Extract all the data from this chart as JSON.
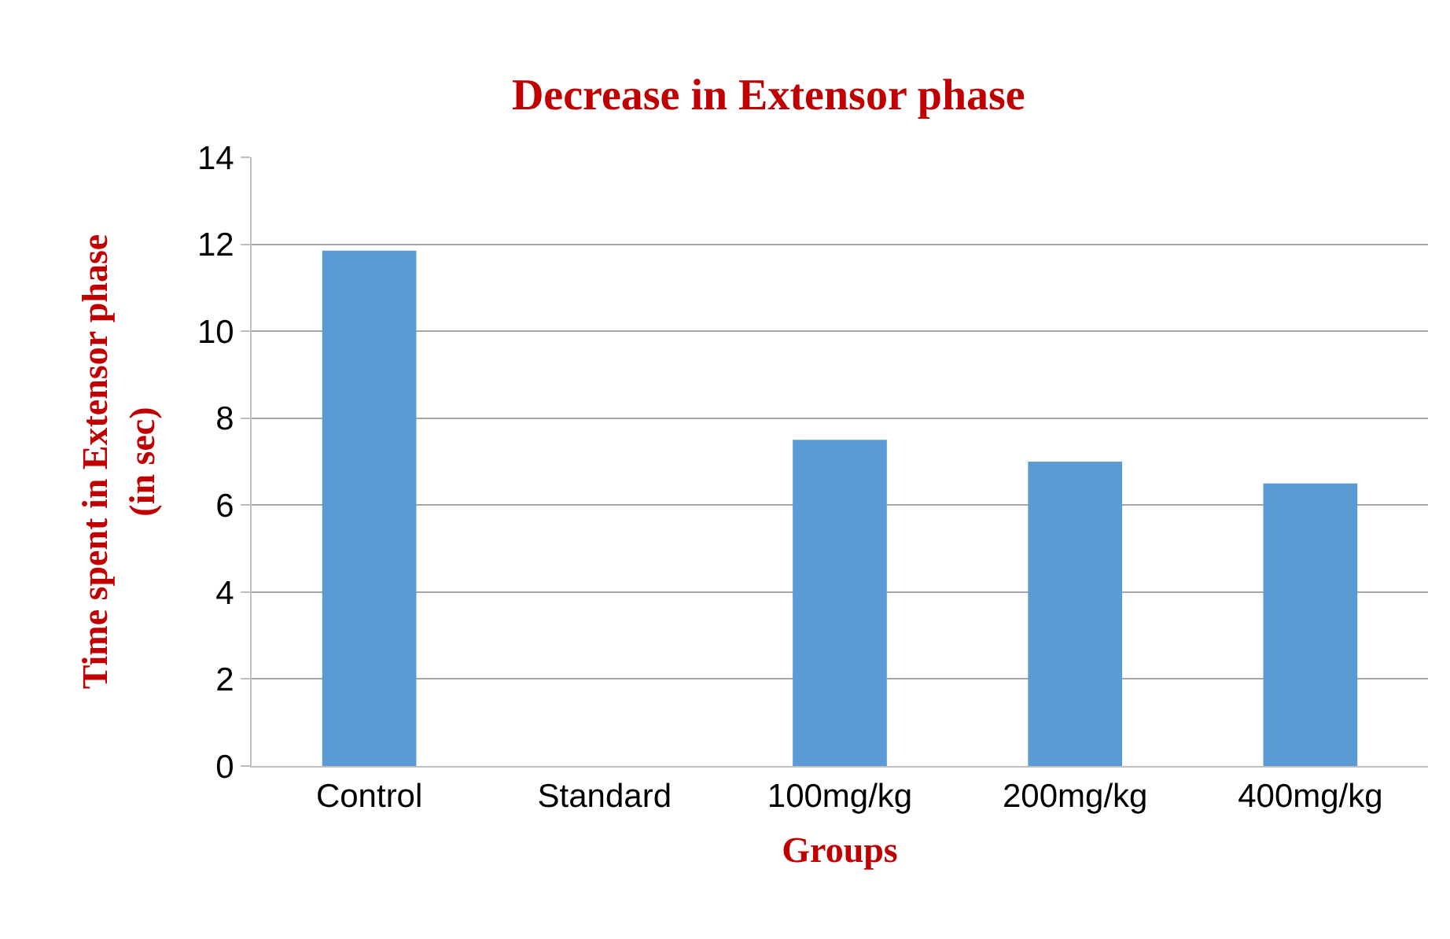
{
  "chart_data": {
    "type": "bar",
    "title": "Decrease in Extensor phase",
    "xlabel": "Groups",
    "ylabel": "Time spent in Extensor phase\n(in sec)",
    "categories": [
      "Control",
      "Standard",
      "100mg/kg",
      "200mg/kg",
      "400mg/kg"
    ],
    "values": [
      11.85,
      0,
      7.5,
      7.0,
      6.5
    ],
    "color": "#5b9bd5",
    "ylim": [
      0,
      14
    ],
    "yticks": [
      0,
      2,
      4,
      6,
      8,
      10,
      12,
      14
    ],
    "grid": "y"
  }
}
